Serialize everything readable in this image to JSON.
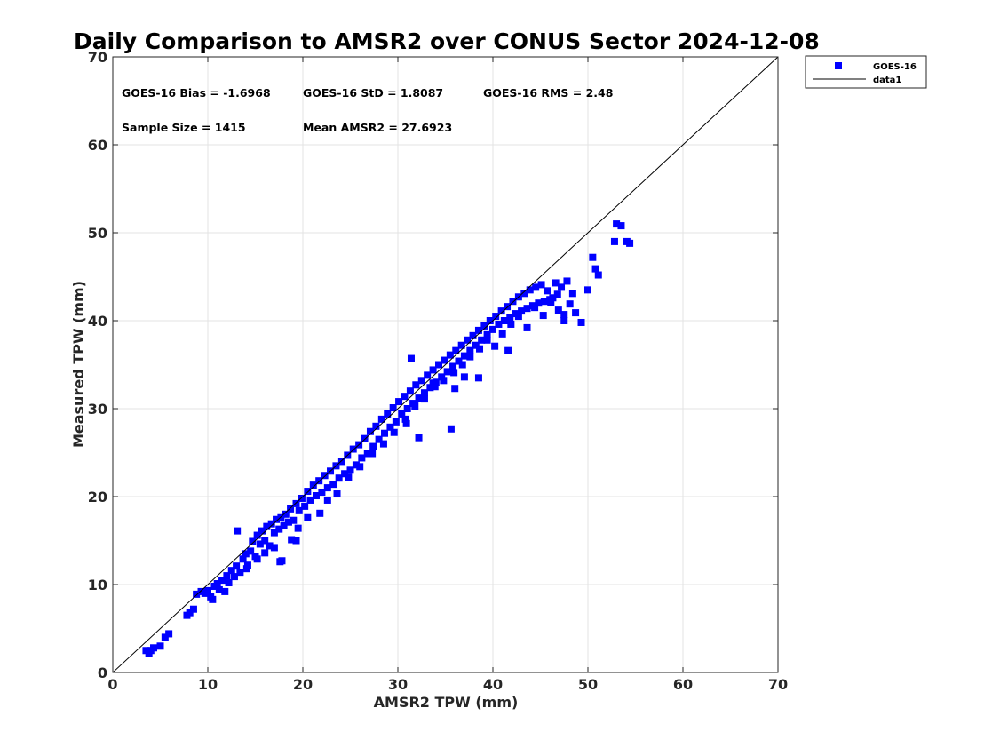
{
  "chart_data": {
    "type": "scatter",
    "title": "Daily Comparison to AMSR2 over CONUS Sector 2024-12-08",
    "xlabel": "AMSR2 TPW (mm)",
    "ylabel": "Measured TPW (mm)",
    "xlim": [
      0,
      70
    ],
    "ylim": [
      0,
      70
    ],
    "xticks": [
      "0",
      "10",
      "20",
      "30",
      "40",
      "50",
      "60",
      "70"
    ],
    "yticks": [
      "0",
      "10",
      "20",
      "30",
      "40",
      "50",
      "60",
      "70"
    ],
    "grid": true,
    "legend": {
      "placement": "outside-top-right",
      "entries": [
        "GOES-16",
        "data1"
      ]
    },
    "stats": {
      "bias": "GOES-16 Bias = -1.6968",
      "std": "GOES-16 StD = 1.8087",
      "rms": "GOES-16 RMS = 2.48",
      "sample_size": "Sample Size = 1415",
      "mean_amsr2": "Mean AMSR2 = 27.6923"
    },
    "series": [
      {
        "name": "GOES-16",
        "marker": "square",
        "color": "#0000ff",
        "x": [
          3.5,
          3.8,
          4.0,
          4.3,
          5.0,
          5.5,
          5.9,
          7.8,
          8.1,
          8.5,
          8.8,
          9.3,
          9.7,
          10.0,
          10.3,
          10.7,
          11.0,
          11.2,
          11.5,
          11.8,
          12.0,
          12.2,
          12.5,
          12.8,
          13.0,
          13.4,
          13.7,
          14.0,
          14.2,
          14.5,
          14.7,
          15.0,
          15.2,
          15.5,
          15.7,
          16.0,
          16.2,
          16.5,
          16.7,
          17.0,
          17.2,
          17.5,
          17.7,
          18.0,
          18.2,
          18.5,
          18.7,
          19.0,
          19.3,
          19.6,
          19.9,
          20.2,
          20.5,
          20.8,
          21.1,
          21.4,
          21.7,
          22.0,
          22.3,
          22.6,
          22.9,
          23.2,
          23.5,
          23.8,
          24.1,
          24.4,
          24.7,
          25.0,
          25.3,
          25.6,
          25.9,
          26.2,
          26.5,
          26.8,
          27.1,
          27.4,
          27.7,
          28.0,
          28.3,
          28.6,
          28.9,
          29.2,
          29.5,
          29.8,
          30.1,
          30.4,
          30.7,
          31.0,
          31.3,
          31.6,
          31.9,
          32.2,
          32.5,
          32.8,
          33.1,
          33.4,
          33.7,
          34.0,
          34.3,
          34.6,
          34.9,
          35.2,
          35.5,
          35.8,
          36.1,
          36.4,
          36.7,
          37.0,
          37.3,
          37.6,
          37.9,
          38.2,
          38.5,
          38.8,
          39.1,
          39.4,
          39.7,
          40.0,
          40.3,
          40.6,
          40.9,
          41.2,
          41.5,
          41.8,
          42.1,
          42.4,
          42.7,
          43.0,
          43.3,
          43.6,
          43.9,
          44.2,
          44.5,
          44.8,
          45.1,
          45.4,
          45.7,
          46.0,
          46.3,
          46.6,
          46.9,
          47.2,
          47.5,
          47.8,
          48.1,
          48.4,
          48.7,
          49.3,
          50.0,
          50.5,
          50.8,
          51.1,
          52.8,
          53.0,
          53.5,
          54.1,
          54.4,
          15.2,
          16.0,
          17.0,
          17.6,
          18.8,
          19.5,
          20.5,
          21.8,
          22.6,
          23.6,
          24.8,
          26.0,
          27.3,
          28.5,
          29.6,
          30.8,
          31.8,
          32.8,
          33.9,
          34.8,
          35.9,
          36.8,
          37.6,
          38.6,
          39.4,
          40.2,
          41.0,
          41.9,
          42.7,
          43.6,
          44.4,
          45.3,
          46.1,
          46.8,
          47.5,
          36.0,
          37.0,
          35.6,
          38.5,
          41.6,
          33.7,
          32.2,
          30.9,
          31.4,
          13.1,
          14.1,
          17.8,
          19.3,
          10.5
        ],
        "y": [
          2.5,
          2.2,
          2.5,
          2.8,
          3.0,
          4.0,
          4.4,
          6.5,
          6.8,
          7.2,
          8.9,
          9.2,
          9.0,
          9.3,
          8.6,
          9.8,
          10.1,
          9.4,
          10.5,
          9.2,
          11.0,
          10.2,
          11.6,
          10.9,
          12.1,
          11.4,
          12.9,
          13.5,
          12.2,
          13.8,
          14.9,
          13.2,
          15.6,
          14.6,
          16.1,
          15.0,
          16.6,
          14.4,
          16.9,
          15.9,
          17.4,
          16.3,
          17.6,
          16.7,
          18.0,
          17.1,
          18.6,
          17.3,
          19.2,
          18.4,
          19.8,
          18.9,
          20.6,
          19.6,
          21.3,
          20.1,
          21.8,
          20.5,
          22.4,
          21.0,
          22.9,
          21.4,
          23.5,
          22.1,
          24.0,
          22.6,
          24.7,
          23.0,
          25.4,
          23.6,
          25.9,
          24.4,
          26.6,
          24.9,
          27.4,
          25.7,
          28.0,
          26.5,
          28.8,
          27.2,
          29.4,
          27.9,
          30.1,
          28.5,
          30.8,
          29.4,
          31.4,
          30.0,
          32.0,
          30.6,
          32.7,
          31.2,
          33.2,
          31.8,
          33.8,
          32.4,
          34.4,
          33.0,
          35.0,
          33.6,
          35.5,
          34.2,
          36.1,
          34.8,
          36.6,
          35.4,
          37.2,
          36.0,
          37.8,
          36.6,
          38.3,
          37.2,
          38.9,
          37.8,
          39.4,
          38.4,
          40.0,
          39.0,
          40.5,
          39.6,
          41.1,
          40.0,
          41.6,
          40.4,
          42.2,
          40.8,
          42.7,
          41.1,
          43.1,
          41.4,
          43.5,
          41.7,
          43.8,
          42.0,
          44.1,
          42.2,
          43.4,
          42.4,
          42.6,
          44.3,
          41.2,
          43.8,
          40.7,
          44.5,
          41.9,
          43.1,
          40.9,
          39.8,
          43.5,
          47.2,
          45.9,
          45.2,
          49.0,
          51.0,
          50.8,
          49.0,
          48.8,
          12.9,
          13.6,
          14.2,
          12.6,
          15.1,
          16.4,
          17.6,
          18.1,
          19.6,
          20.3,
          22.2,
          23.4,
          24.9,
          26.0,
          27.3,
          28.8,
          30.3,
          31.1,
          32.5,
          33.2,
          34.1,
          35.0,
          35.9,
          36.8,
          37.8,
          37.1,
          38.5,
          39.6,
          40.5,
          39.2,
          41.5,
          40.6,
          42.1,
          43.0,
          40.0,
          32.3,
          33.6,
          27.7,
          33.5,
          36.6,
          32.9,
          26.7,
          28.3,
          35.7,
          16.1,
          11.8,
          12.7,
          15.0,
          8.3
        ]
      },
      {
        "name": "data1",
        "type": "line",
        "color": "#000000",
        "x": [
          0,
          70
        ],
        "y": [
          0,
          70
        ]
      }
    ]
  }
}
